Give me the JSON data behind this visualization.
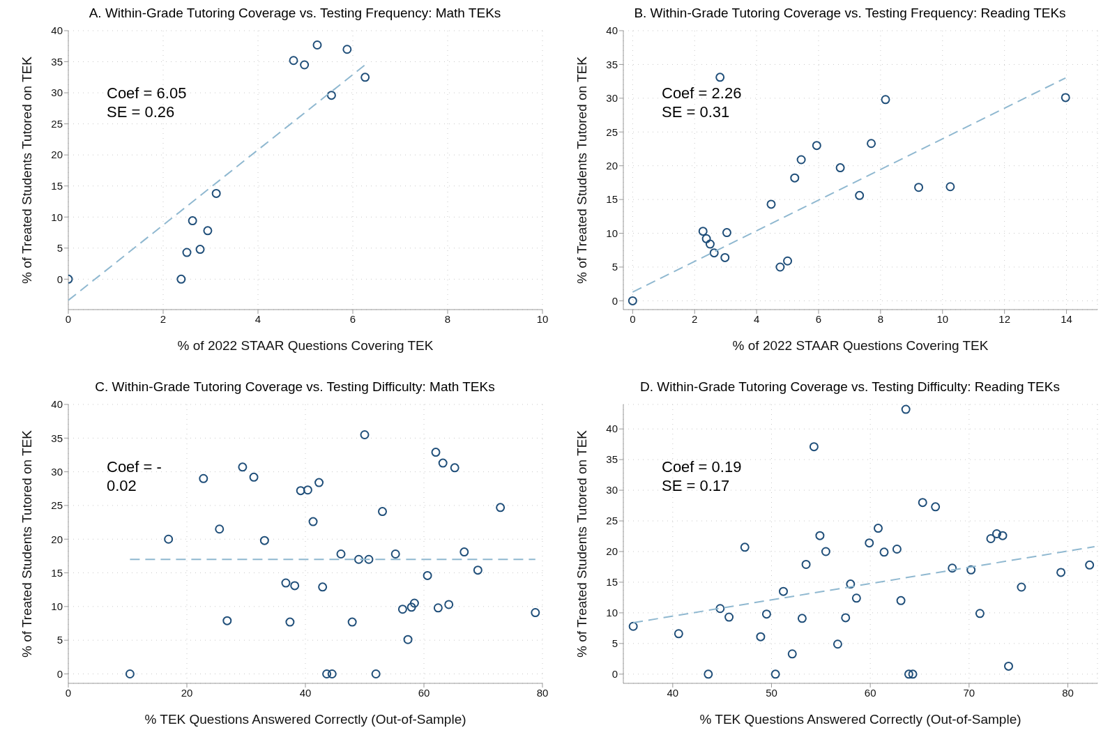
{
  "chart_data": [
    {
      "type": "scatter",
      "title": "A. Within-Grade Tutoring Coverage vs. Testing Frequency: Math TEKs",
      "xlabel": "% of 2022 STAAR Questions Covering TEK",
      "ylabel": "% of Treated Students Tutored on TEK",
      "annotations": [
        "Coef = 6.05",
        "SE = 0.26"
      ],
      "xlim": [
        0,
        10
      ],
      "xticks": [
        0,
        2,
        4,
        6,
        8,
        10
      ],
      "ylim": [
        -4.9,
        40
      ],
      "yticks": [
        0,
        5,
        10,
        15,
        20,
        25,
        30,
        35,
        40
      ],
      "grid": true,
      "marker": "circle",
      "series": [
        {
          "type": "scatter",
          "color": "#1f4e79",
          "x": [
            0,
            2.38,
            2.5,
            2.78,
            2.62,
            2.94,
            3.12,
            4.75,
            4.98,
            5.25,
            5.55,
            5.88,
            6.26
          ],
          "values": [
            0,
            0,
            4.3,
            4.8,
            9.4,
            7.8,
            13.8,
            35.2,
            34.5,
            37.7,
            29.6,
            37,
            32.5
          ]
        },
        {
          "type": "line",
          "color": "#8fb8d0",
          "marker": "none",
          "line_style": "dashed",
          "x": [
            0,
            6.26
          ],
          "values": [
            -3.4,
            34.5
          ]
        }
      ]
    },
    {
      "type": "scatter",
      "title": "B. Within-Grade Tutoring Coverage vs. Testing Frequency: Reading TEKs",
      "xlabel": "% of 2022 STAAR Questions Covering TEK",
      "ylabel": "% of Treated Students Tutored on TEK",
      "annotations": [
        "Coef = 2.26",
        "SE = 0.31"
      ],
      "xlim": [
        -0.3,
        15
      ],
      "xticks": [
        0,
        2,
        4,
        6,
        8,
        10,
        12,
        14
      ],
      "ylim": [
        -1.3,
        40
      ],
      "yticks": [
        0,
        5,
        10,
        15,
        20,
        25,
        30,
        35,
        40
      ],
      "grid": true,
      "marker": "circle",
      "series": [
        {
          "type": "scatter",
          "color": "#1f4e79",
          "x": [
            0,
            2.27,
            2.38,
            2.5,
            2.63,
            2.82,
            2.98,
            3.04,
            4.47,
            4.76,
            5.0,
            5.23,
            5.44,
            5.94,
            6.7,
            7.32,
            7.7,
            8.16,
            9.23,
            10.25,
            13.97
          ],
          "values": [
            0,
            10.3,
            9.2,
            8.4,
            7.1,
            33.1,
            6.4,
            10.1,
            14.3,
            5.0,
            5.9,
            18.2,
            20.9,
            23.0,
            19.7,
            15.6,
            23.3,
            29.8,
            16.8,
            16.9,
            30.1
          ]
        },
        {
          "type": "line",
          "color": "#8fb8d0",
          "marker": "none",
          "line_style": "dashed",
          "x": [
            0,
            13.97
          ],
          "values": [
            1.3,
            33.0
          ]
        }
      ]
    },
    {
      "type": "scatter",
      "title": "C. Within-Grade Tutoring Coverage vs. Testing Difficulty: Math TEKs",
      "xlabel": "% TEK Questions Answered Correctly (Out-of-Sample)",
      "ylabel": "% of Treated Students Tutored on TEK",
      "annotations": [
        "Coef = -",
        "0.02"
      ],
      "xlim": [
        0,
        80
      ],
      "xticks": [
        0,
        20,
        40,
        60,
        80
      ],
      "ylim": [
        -1.4,
        40
      ],
      "yticks": [
        0,
        5,
        10,
        15,
        20,
        25,
        30,
        35,
        40
      ],
      "grid": true,
      "marker": "circle",
      "series": [
        {
          "type": "scatter",
          "color": "#1f4e79",
          "x": [
            10.4,
            16.9,
            22.8,
            25.5,
            26.8,
            29.4,
            31.3,
            33.1,
            36.7,
            37.4,
            38.2,
            39.2,
            40.4,
            41.3,
            42.3,
            42.9,
            43.6,
            44.5,
            46.0,
            47.9,
            49.0,
            50.0,
            50.7,
            51.9,
            53.0,
            55.2,
            56.4,
            57.3,
            57.9,
            58.4,
            60.6,
            62.0,
            62.4,
            63.2,
            64.2,
            65.2,
            66.8,
            69.1,
            72.9,
            78.8
          ],
          "values": [
            0,
            20.0,
            29.0,
            21.5,
            7.9,
            30.7,
            29.2,
            19.8,
            13.5,
            7.7,
            13.1,
            27.2,
            27.3,
            22.6,
            28.4,
            12.9,
            0,
            0,
            17.8,
            7.7,
            17.0,
            35.5,
            17.0,
            0,
            24.1,
            17.8,
            9.6,
            5.1,
            9.9,
            10.5,
            14.6,
            32.9,
            9.8,
            31.3,
            10.3,
            30.6,
            18.1,
            15.4,
            24.7,
            9.1
          ]
        },
        {
          "type": "line",
          "color": "#8fb8d0",
          "marker": "none",
          "line_style": "dashed",
          "x": [
            10.4,
            78.8
          ],
          "values": [
            17.0,
            17.0
          ]
        }
      ]
    },
    {
      "type": "scatter",
      "title": "D. Within-Grade Tutoring Coverage vs. Testing Difficulty: Reading TEKs",
      "xlabel": "% TEK Questions Answered Correctly (Out-of-Sample)",
      "ylabel": "% of Treated Students Tutored on TEK",
      "annotations": [
        "Coef = 0.19",
        "SE = 0.17"
      ],
      "xlim": [
        35,
        83
      ],
      "xticks": [
        40,
        50,
        60,
        70,
        80
      ],
      "ylim": [
        -1.5,
        44
      ],
      "yticks": [
        0,
        5,
        10,
        15,
        20,
        25,
        30,
        35,
        40
      ],
      "grid": true,
      "marker": "circle",
      "series": [
        {
          "type": "scatter",
          "color": "#1f4e79",
          "x": [
            36.0,
            40.6,
            43.6,
            44.8,
            45.7,
            47.3,
            48.9,
            49.5,
            50.4,
            51.2,
            52.1,
            53.1,
            53.5,
            54.3,
            54.9,
            55.5,
            56.7,
            57.5,
            58.0,
            58.6,
            59.9,
            60.8,
            61.4,
            62.7,
            63.1,
            63.6,
            63.9,
            64.3,
            65.3,
            66.6,
            68.3,
            70.2,
            71.1,
            72.2,
            72.8,
            73.4,
            74.0,
            75.3,
            79.3,
            82.2
          ],
          "values": [
            7.8,
            6.6,
            0,
            10.7,
            9.3,
            20.7,
            6.1,
            9.8,
            0,
            13.5,
            3.3,
            9.1,
            17.9,
            37.1,
            22.6,
            20.0,
            4.9,
            9.2,
            14.7,
            12.4,
            21.4,
            23.8,
            19.9,
            20.4,
            12.0,
            43.2,
            0,
            0,
            28.0,
            27.3,
            17.3,
            17.0,
            9.9,
            22.1,
            22.9,
            22.6,
            1.3,
            14.2,
            16.6,
            17.8
          ]
        },
        {
          "type": "line",
          "color": "#8fb8d0",
          "marker": "none",
          "line_style": "dashed",
          "x": [
            36,
            82.7
          ],
          "values": [
            8.4,
            20.8
          ]
        }
      ]
    }
  ]
}
